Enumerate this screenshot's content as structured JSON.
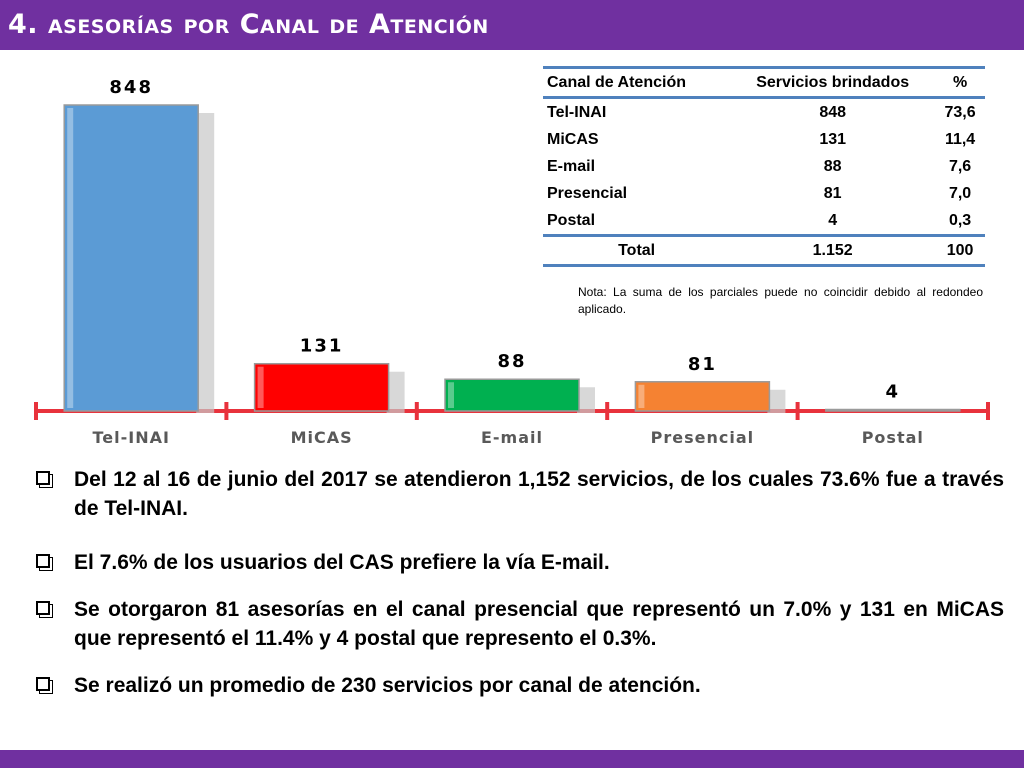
{
  "title": "4. asesorías por Canal de Atención",
  "chart_data": {
    "type": "bar",
    "categories": [
      "Tel-INAI",
      "MiCAS",
      "E-mail",
      "Presencial",
      "Postal"
    ],
    "values": [
      848,
      131,
      88,
      81,
      4
    ],
    "colors": [
      "#5b9bd5",
      "#ff0000",
      "#00b050",
      "#f58232",
      "#ffffff"
    ],
    "axis_color": "#e8323c",
    "title": "",
    "xlabel": "",
    "ylabel": ""
  },
  "table": {
    "headers": [
      "Canal de Atención",
      "Servicios brindados",
      "%"
    ],
    "rows": [
      [
        "Tel-INAI",
        "848",
        "73,6"
      ],
      [
        "MiCAS",
        "131",
        "11,4"
      ],
      [
        "E-mail",
        "88",
        "7,6"
      ],
      [
        "Presencial",
        "81",
        "7,0"
      ],
      [
        "Postal",
        "4",
        "0,3"
      ]
    ],
    "total": [
      "Total",
      "1.152",
      "100"
    ]
  },
  "note": "Nota: La suma de los parciales puede no coincidir debido al redondeo aplicado.",
  "bullets": [
    "Del 12 al 16 de junio del 2017 se atendieron 1,152 servicios, de los cuales 73.6% fue a través de Tel-INAI.",
    "El 7.6% de los usuarios del CAS prefiere la vía E-mail.",
    "Se otorgaron 81 asesorías en el canal presencial que representó un 7.0% y 131 en MiCAS que representó el 11.4% y 4 postal que represento el 0.3%.",
    "Se realizó un promedio de 230 servicios por canal de atención."
  ],
  "accent_color": "#7030a0"
}
